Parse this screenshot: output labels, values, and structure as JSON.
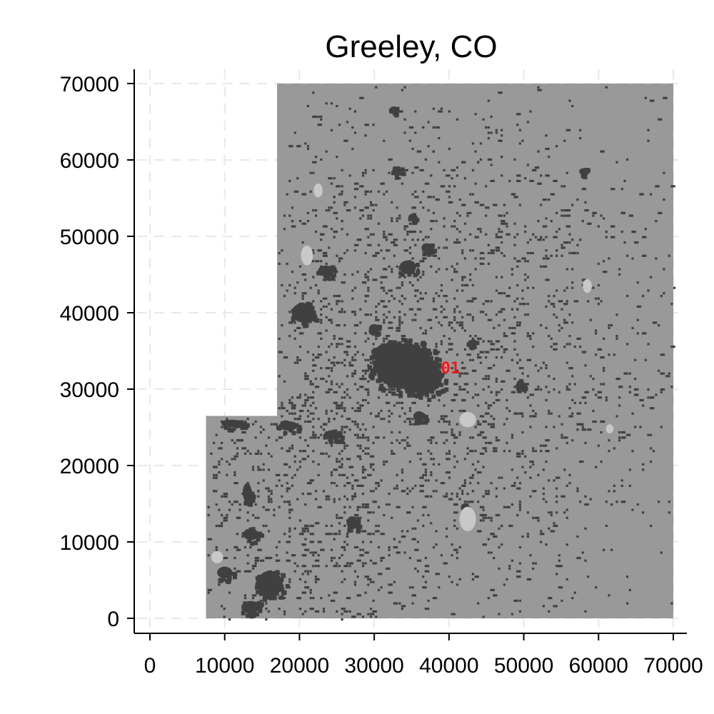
{
  "chart_data": {
    "type": "heatmap",
    "title": "Greeley, CO",
    "xlabel": "",
    "ylabel": "",
    "xlim": [
      -2000,
      72000
    ],
    "ylim": [
      -2000,
      72000
    ],
    "x_ticks": [
      0,
      10000,
      20000,
      30000,
      40000,
      50000,
      60000,
      70000
    ],
    "y_ticks": [
      0,
      10000,
      20000,
      30000,
      40000,
      50000,
      60000,
      70000
    ],
    "x_tick_labels": [
      "0",
      "10000",
      "20000",
      "30000",
      "40000",
      "50000",
      "60000",
      "70000"
    ],
    "y_tick_labels": [
      "0",
      "10000",
      "20000",
      "30000",
      "40000",
      "50000",
      "60000",
      "70000"
    ],
    "grid": true,
    "grid_style": "dashed",
    "legend": "none",
    "colors": {
      "background_land": "#999999",
      "developed": "#404040",
      "light_patch": "#c8c8c8",
      "grid": "#e8e8e8",
      "marker": "#e02020",
      "marker_light": "#ff8c8c"
    },
    "study_area": [
      [
        17000,
        0
      ],
      [
        70000,
        0
      ],
      [
        70000,
        70000
      ],
      [
        17000,
        70000
      ],
      [
        17000,
        26500
      ],
      [
        7500,
        26500
      ],
      [
        7500,
        0
      ]
    ],
    "dense_blobs": [
      {
        "x": 34000,
        "y": 33000,
        "rx": 4500,
        "ry": 3500
      },
      {
        "x": 36500,
        "y": 31500,
        "rx": 3000,
        "ry": 2500
      },
      {
        "x": 32000,
        "y": 34500,
        "rx": 2500,
        "ry": 1800
      },
      {
        "x": 20500,
        "y": 40000,
        "rx": 1800,
        "ry": 1500
      },
      {
        "x": 23500,
        "y": 45500,
        "rx": 1200,
        "ry": 800
      },
      {
        "x": 34500,
        "y": 46000,
        "rx": 1300,
        "ry": 1000
      },
      {
        "x": 37000,
        "y": 48500,
        "rx": 800,
        "ry": 700
      },
      {
        "x": 33000,
        "y": 58500,
        "rx": 700,
        "ry": 700
      },
      {
        "x": 32500,
        "y": 66500,
        "rx": 600,
        "ry": 500
      },
      {
        "x": 35000,
        "y": 52500,
        "rx": 500,
        "ry": 500
      },
      {
        "x": 18500,
        "y": 25200,
        "rx": 1500,
        "ry": 700
      },
      {
        "x": 11000,
        "y": 25500,
        "rx": 1700,
        "ry": 600
      },
      {
        "x": 24500,
        "y": 24000,
        "rx": 1500,
        "ry": 700
      },
      {
        "x": 13000,
        "y": 16500,
        "rx": 700,
        "ry": 1400
      },
      {
        "x": 13500,
        "y": 11000,
        "rx": 1200,
        "ry": 900
      },
      {
        "x": 16000,
        "y": 4500,
        "rx": 2000,
        "ry": 2000
      },
      {
        "x": 13500,
        "y": 1500,
        "rx": 1500,
        "ry": 900
      },
      {
        "x": 10000,
        "y": 6000,
        "rx": 1200,
        "ry": 900
      },
      {
        "x": 27000,
        "y": 12500,
        "rx": 800,
        "ry": 1000
      },
      {
        "x": 49500,
        "y": 30500,
        "rx": 600,
        "ry": 800
      },
      {
        "x": 58000,
        "y": 58500,
        "rx": 700,
        "ry": 500
      },
      {
        "x": 36000,
        "y": 26500,
        "rx": 900,
        "ry": 700
      },
      {
        "x": 42000,
        "y": 14500,
        "rx": 500,
        "ry": 600
      },
      {
        "x": 30000,
        "y": 38000,
        "rx": 800,
        "ry": 600
      },
      {
        "x": 43000,
        "y": 36000,
        "rx": 600,
        "ry": 500
      }
    ],
    "light_patches": [
      {
        "x": 42500,
        "y": 13000,
        "rx": 1100,
        "ry": 1600
      },
      {
        "x": 42500,
        "y": 26000,
        "rx": 1100,
        "ry": 1000
      },
      {
        "x": 21000,
        "y": 47500,
        "rx": 800,
        "ry": 1300
      },
      {
        "x": 22500,
        "y": 56000,
        "rx": 600,
        "ry": 900
      },
      {
        "x": 58500,
        "y": 43500,
        "rx": 600,
        "ry": 900
      },
      {
        "x": 61500,
        "y": 24800,
        "rx": 500,
        "ry": 600
      },
      {
        "x": 9000,
        "y": 8000,
        "rx": 800,
        "ry": 800
      }
    ],
    "noise_seed": 20240611,
    "noise_cells": 2600,
    "noise_center": [
      35000,
      33000
    ],
    "city_marker": {
      "x": 39500,
      "y": 32800,
      "label": "01"
    }
  }
}
